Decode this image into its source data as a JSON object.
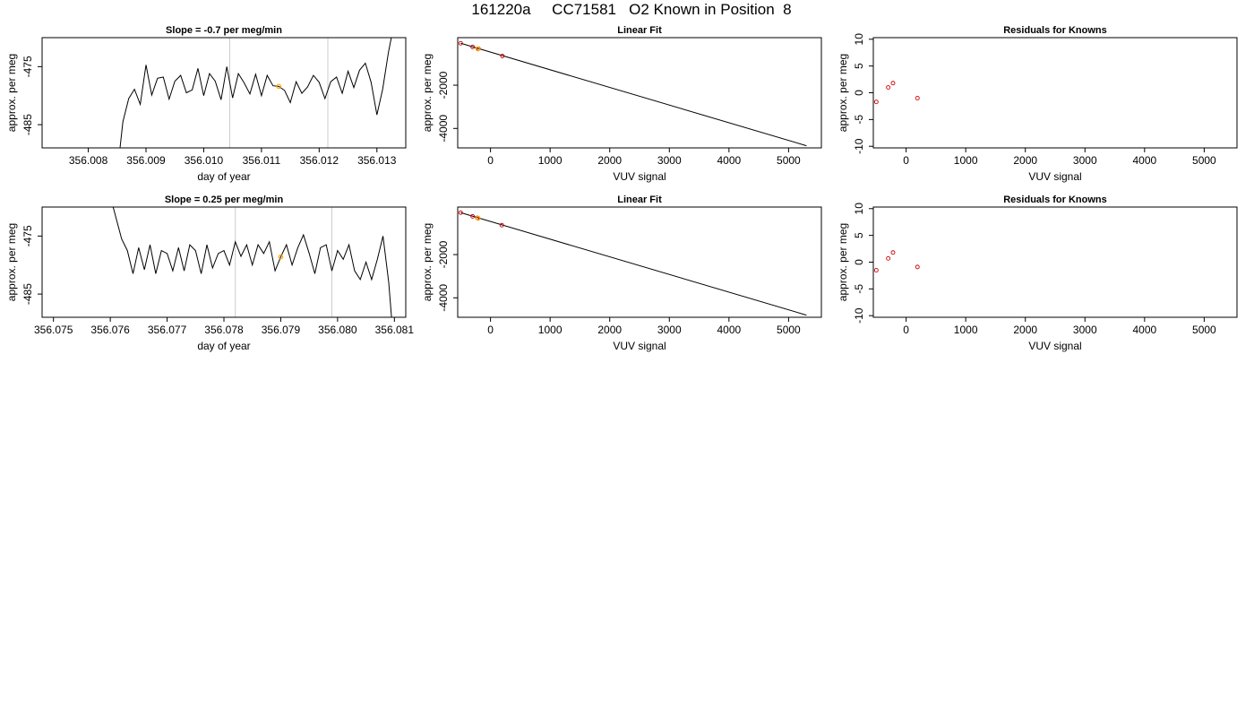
{
  "page": {
    "suptitle": "161220a     CC71581   O2 Known in Position  8"
  },
  "colors": {
    "trace": "#000000",
    "vline": "#cccccc",
    "highlight": "#ffa500",
    "known_points": "#cc0000",
    "frame": "#000000"
  },
  "chart_data": [
    {
      "type": "line",
      "title": "Slope =  -0.7  per meg/min",
      "xlabel": "day of year",
      "ylabel": "approx. per meg",
      "xlim": [
        356.0072,
        356.0135
      ],
      "ylim": [
        -489.0,
        -470.0
      ],
      "xticks": [
        356.008,
        356.009,
        356.01,
        356.011,
        356.012,
        356.013
      ],
      "xtick_labels": [
        "356.008",
        "356.009",
        "356.010",
        "356.011",
        "356.012",
        "356.013"
      ],
      "yticks": [
        -485,
        -475
      ],
      "ytick_labels": [
        "-485",
        "-475"
      ],
      "vlines": [
        356.01045,
        356.01215
      ],
      "highlight_point": {
        "x": 356.0113,
        "y": -478.4
      },
      "series": [
        {
          "x": [
            356.00855,
            356.0086,
            356.0087,
            356.0088,
            356.0089,
            356.009,
            356.0091,
            356.0092,
            356.0093,
            356.0094,
            356.0095,
            356.0096,
            356.0097,
            356.0098,
            356.0099,
            356.01,
            356.0101,
            356.0102,
            356.0103,
            356.0104,
            356.0105,
            356.0106,
            356.0107,
            356.0108,
            356.0109,
            356.011,
            356.0111,
            356.0112,
            356.0113,
            356.0114,
            356.0115,
            356.0116,
            356.0117,
            356.0118,
            356.0119,
            356.012,
            356.0121,
            356.0122,
            356.0123,
            356.0124,
            356.0125,
            356.0126,
            356.0127,
            356.0128,
            356.0129,
            356.013,
            356.0131,
            356.0132,
            356.01325
          ],
          "y": [
            -489.0,
            -484.5,
            -480.5,
            -478.9,
            -481.5,
            -474.7,
            -479.9,
            -477.0,
            -476.8,
            -480.6,
            -477.5,
            -476.5,
            -479.5,
            -479.0,
            -475.3,
            -480.0,
            -476.2,
            -477.5,
            -480.7,
            -475.0,
            -480.4,
            -476.2,
            -477.8,
            -479.7,
            -476.3,
            -480.0,
            -476.5,
            -478.3,
            -478.4,
            -479.1,
            -481.2,
            -477.6,
            -479.6,
            -478.5,
            -476.5,
            -477.7,
            -480.5,
            -477.6,
            -476.8,
            -479.6,
            -475.8,
            -478.6,
            -475.6,
            -474.4,
            -477.7,
            -483.3,
            -478.9,
            -472.5,
            -470.0
          ]
        }
      ]
    },
    {
      "type": "scatter",
      "title": "Linear Fit",
      "xlabel": "VUV signal",
      "ylabel": "approx. per meg",
      "xlim": [
        -550,
        5550
      ],
      "ylim": [
        -4900,
        200
      ],
      "xticks": [
        0,
        1000,
        2000,
        3000,
        4000,
        5000
      ],
      "xtick_labels": [
        "0",
        "1000",
        "2000",
        "3000",
        "4000",
        "5000"
      ],
      "yticks": [
        -4000,
        -2000
      ],
      "ytick_labels": [
        "-4000",
        "-2000"
      ],
      "fit_line": {
        "x": [
          -500,
          5300
        ],
        "y": [
          -60,
          -4800
        ]
      },
      "points": {
        "x": [
          -500,
          -300,
          -200,
          200
        ],
        "y": [
          -60,
          -230,
          -310,
          -650
        ]
      },
      "highlight_point": {
        "x": -210,
        "y": -320
      }
    },
    {
      "type": "scatter",
      "title": "Residuals for Knowns",
      "xlabel": "VUV signal",
      "ylabel": "approx. per meg",
      "xlim": [
        -550,
        5550
      ],
      "ylim": [
        -10.3,
        10.3
      ],
      "xticks": [
        0,
        1000,
        2000,
        3000,
        4000,
        5000
      ],
      "xtick_labels": [
        "0",
        "1000",
        "2000",
        "3000",
        "4000",
        "5000"
      ],
      "yticks": [
        -10,
        -5,
        0,
        5,
        10
      ],
      "ytick_labels": [
        "-10",
        "-5",
        "0",
        "5",
        "10"
      ],
      "points": {
        "x": [
          -500,
          -300,
          -220,
          190
        ],
        "y": [
          -1.7,
          1.0,
          1.8,
          -1.0
        ]
      }
    },
    {
      "type": "line",
      "title": "Slope =  0.25  per meg/min",
      "xlabel": "day of year",
      "ylabel": "approx. per meg",
      "xlim": [
        356.0748,
        356.0812
      ],
      "ylim": [
        -489.0,
        -470.0
      ],
      "xticks": [
        356.075,
        356.076,
        356.077,
        356.078,
        356.079,
        356.08,
        356.081
      ],
      "xtick_labels": [
        "356.075",
        "356.076",
        "356.077",
        "356.078",
        "356.079",
        "356.080",
        "356.081"
      ],
      "yticks": [
        -485,
        -475
      ],
      "ytick_labels": [
        "-485",
        "-475"
      ],
      "vlines": [
        356.0782,
        356.0799
      ],
      "highlight_point": {
        "x": 356.079,
        "y": -478.6
      },
      "series": [
        {
          "x": [
            356.07605,
            356.0762,
            356.0763,
            356.0764,
            356.0765,
            356.0766,
            356.0767,
            356.0768,
            356.0769,
            356.077,
            356.0771,
            356.0772,
            356.0773,
            356.0774,
            356.0775,
            356.0776,
            356.0777,
            356.0778,
            356.0779,
            356.078,
            356.0781,
            356.0782,
            356.0783,
            356.0784,
            356.0785,
            356.0786,
            356.0787,
            356.0788,
            356.0789,
            356.079,
            356.0791,
            356.0792,
            356.0793,
            356.0794,
            356.0795,
            356.0796,
            356.0797,
            356.0798,
            356.0799,
            356.08,
            356.0801,
            356.0802,
            356.0803,
            356.0804,
            356.0805,
            356.0806,
            356.0807,
            356.0808,
            356.0809,
            356.08095
          ],
          "y": [
            -470.0,
            -475.5,
            -477.5,
            -481.5,
            -477.0,
            -480.8,
            -476.5,
            -481.5,
            -477.5,
            -478.0,
            -481.0,
            -477.0,
            -481.0,
            -476.5,
            -477.5,
            -481.5,
            -476.5,
            -480.5,
            -478.0,
            -477.5,
            -480.0,
            -476.0,
            -478.5,
            -476.5,
            -480.0,
            -476.5,
            -478.0,
            -476.0,
            -481.0,
            -478.6,
            -476.5,
            -480.0,
            -477.0,
            -474.8,
            -478.0,
            -481.5,
            -477.0,
            -476.5,
            -481.0,
            -477.5,
            -479.0,
            -476.5,
            -481.0,
            -482.5,
            -479.5,
            -482.5,
            -479.0,
            -475.0,
            -483.0,
            -489.0
          ]
        }
      ]
    },
    {
      "type": "scatter",
      "title": "Linear Fit",
      "xlabel": "VUV signal",
      "ylabel": "approx. per meg",
      "xlim": [
        -550,
        5550
      ],
      "ylim": [
        -4900,
        200
      ],
      "xticks": [
        0,
        1000,
        2000,
        3000,
        4000,
        5000
      ],
      "xtick_labels": [
        "0",
        "1000",
        "2000",
        "3000",
        "4000",
        "5000"
      ],
      "yticks": [
        -4000,
        -2000
      ],
      "ytick_labels": [
        "-4000",
        "-2000"
      ],
      "fit_line": {
        "x": [
          -500,
          5300
        ],
        "y": [
          -60,
          -4800
        ]
      },
      "points": {
        "x": [
          -500,
          -300,
          -220,
          190
        ],
        "y": [
          -60,
          -230,
          -300,
          -640
        ]
      },
      "highlight_point": {
        "x": -210,
        "y": -320
      }
    },
    {
      "type": "scatter",
      "title": "Residuals for Knowns",
      "xlabel": "VUV signal",
      "ylabel": "approx. per meg",
      "xlim": [
        -550,
        5550
      ],
      "ylim": [
        -10.3,
        10.3
      ],
      "xticks": [
        0,
        1000,
        2000,
        3000,
        4000,
        5000
      ],
      "xtick_labels": [
        "0",
        "1000",
        "2000",
        "3000",
        "4000",
        "5000"
      ],
      "yticks": [
        -10,
        -5,
        0,
        5,
        10
      ],
      "ytick_labels": [
        "-10",
        "-5",
        "0",
        "5",
        "10"
      ],
      "points": {
        "x": [
          -500,
          -300,
          -220,
          190
        ],
        "y": [
          -1.5,
          0.7,
          1.8,
          -0.9
        ]
      }
    }
  ]
}
